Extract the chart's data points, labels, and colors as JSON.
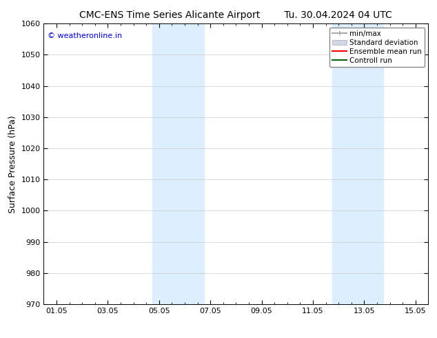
{
  "title_left": "CMC-ENS Time Series Alicante Airport",
  "title_right": "Tu. 30.04.2024 04 UTC",
  "ylabel": "Surface Pressure (hPa)",
  "watermark": "© weatheronline.in",
  "watermark_color": "#0000cc",
  "ylim": [
    970,
    1060
  ],
  "yticks": [
    970,
    980,
    990,
    1000,
    1010,
    1020,
    1030,
    1040,
    1050,
    1060
  ],
  "xtick_labels": [
    "01.05",
    "03.05",
    "05.05",
    "07.05",
    "09.05",
    "11.05",
    "13.05",
    "15.05"
  ],
  "xtick_positions": [
    0,
    2,
    4,
    6,
    8,
    10,
    12,
    14
  ],
  "xlim": [
    -0.5,
    14.5
  ],
  "shaded_bands": [
    {
      "x_start": 3.75,
      "x_end": 5.75,
      "color": "#ddeeff"
    },
    {
      "x_start": 10.75,
      "x_end": 12.75,
      "color": "#ddeeff"
    }
  ],
  "legend_entries": [
    {
      "label": "min/max",
      "color": "#aaaaaa",
      "lw": 1.5,
      "ls": "-",
      "type": "errorbar"
    },
    {
      "label": "Standard deviation",
      "color": "#d0d8e8",
      "lw": 6,
      "ls": "-",
      "type": "patch"
    },
    {
      "label": "Ensemble mean run",
      "color": "#ff0000",
      "lw": 1.5,
      "ls": "-",
      "type": "line"
    },
    {
      "label": "Controll run",
      "color": "#006600",
      "lw": 1.5,
      "ls": "-",
      "type": "line"
    }
  ],
  "bg_color": "#ffffff",
  "grid_color": "#cccccc",
  "title_fontsize": 10,
  "tick_fontsize": 8,
  "ylabel_fontsize": 9,
  "legend_fontsize": 7.5
}
